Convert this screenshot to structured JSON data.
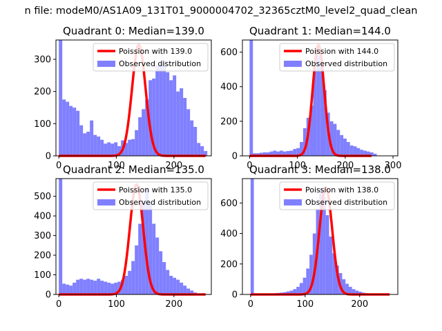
{
  "suptitle": "n file: modeM0/AS1A09_131T01_9000004702_32365cztM0_level2_quad_clean",
  "colors": {
    "poisson": "#ff0000",
    "observed": "#8080ff"
  },
  "chart_data": [
    {
      "type": "bar",
      "title": "Quadrant 0: Median=139.0",
      "legend": {
        "location": "upper-right",
        "entries": [
          "Poission with 139.0",
          "Observed distribution"
        ]
      },
      "xlim": [
        -5,
        265
      ],
      "ylim": [
        0,
        360
      ],
      "xticks": [
        0,
        100,
        200
      ],
      "yticks": [
        0,
        100,
        200,
        300
      ],
      "median": 139,
      "bin_width": 6.0,
      "hist": [
        360,
        175,
        168,
        155,
        150,
        140,
        95,
        70,
        75,
        110,
        65,
        60,
        50,
        38,
        42,
        38,
        42,
        30,
        48,
        40,
        50,
        52,
        80,
        120,
        145,
        175,
        235,
        240,
        280,
        285,
        295,
        260,
        235,
        250,
        200,
        210,
        180,
        145,
        110,
        90,
        40,
        30,
        15,
        0
      ],
      "poisson_peak": 345
    },
    {
      "type": "bar",
      "title": "Quadrant 1: Median=144.0",
      "legend": {
        "location": "upper-right",
        "entries": [
          "Poission with 144.0",
          "Observed distribution"
        ]
      },
      "xlim": [
        -15,
        310
      ],
      "ylim": [
        0,
        670
      ],
      "xticks": [
        0,
        100,
        200,
        300
      ],
      "yticks": [
        0,
        200,
        400,
        600
      ],
      "median": 144,
      "bin_width": 7.0,
      "hist": [
        670,
        15,
        15,
        18,
        20,
        20,
        25,
        30,
        25,
        30,
        25,
        28,
        30,
        40,
        45,
        80,
        160,
        220,
        290,
        500,
        580,
        520,
        380,
        250,
        200,
        185,
        150,
        120,
        100,
        80,
        60,
        55,
        45,
        35,
        30,
        25,
        20,
        12
      ],
      "poisson_peak": 640
    },
    {
      "type": "bar",
      "title": "Quadrant 2: Median=135.0",
      "legend": {
        "location": "upper-right",
        "entries": [
          "Poission with 135.0",
          "Observed distribution"
        ]
      },
      "xlim": [
        -5,
        265
      ],
      "ylim": [
        0,
        590
      ],
      "xticks": [
        0,
        100,
        200
      ],
      "yticks": [
        0,
        100,
        200,
        300,
        400,
        500
      ],
      "median": 135,
      "bin_width": 6.0,
      "hist": [
        590,
        55,
        50,
        45,
        60,
        75,
        80,
        75,
        80,
        75,
        70,
        80,
        70,
        65,
        60,
        55,
        60,
        65,
        75,
        95,
        120,
        170,
        250,
        360,
        470,
        545,
        470,
        360,
        290,
        220,
        165,
        125,
        95,
        85,
        75,
        60,
        45,
        30,
        20,
        10,
        5,
        0
      ],
      "poisson_peak": 560
    },
    {
      "type": "bar",
      "title": "Quadrant 3: Median=138.0",
      "legend": {
        "location": "upper-right",
        "entries": [
          "Poission with 138.0",
          "Observed distribution"
        ]
      },
      "xlim": [
        -15,
        270
      ],
      "ylim": [
        0,
        760
      ],
      "xticks": [
        0,
        100,
        200
      ],
      "yticks": [
        0,
        200,
        400,
        600
      ],
      "median": 138,
      "bin_width": 6.0,
      "hist": [
        760,
        2,
        2,
        3,
        3,
        5,
        5,
        8,
        10,
        12,
        15,
        20,
        25,
        35,
        50,
        75,
        110,
        170,
        260,
        400,
        560,
        700,
        640,
        520,
        380,
        270,
        190,
        140,
        100,
        70,
        50,
        35,
        25,
        18,
        12,
        8,
        5,
        3,
        2,
        0
      ],
      "poisson_peak": 700
    }
  ]
}
